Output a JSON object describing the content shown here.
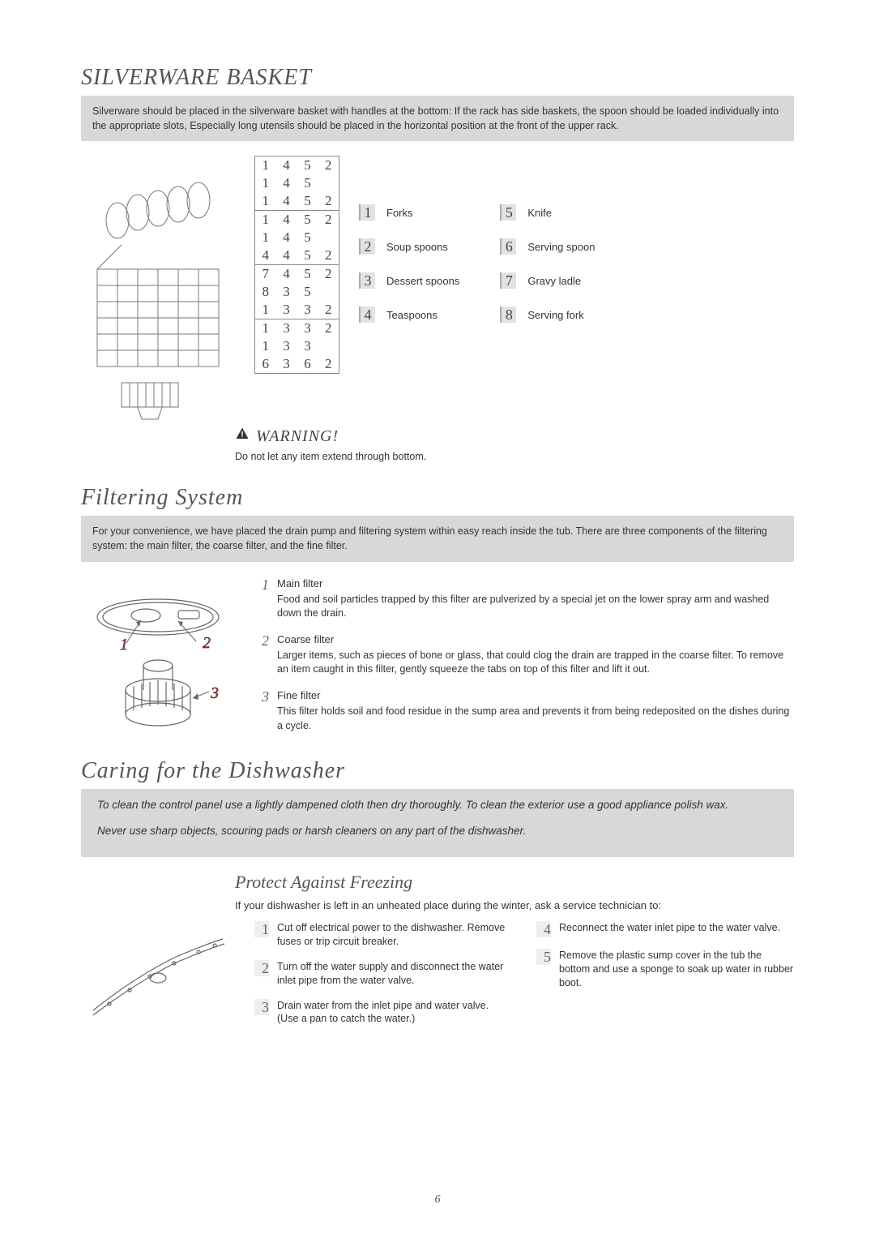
{
  "page_number": "6",
  "colors": {
    "background": "#ffffff",
    "info_box_bg": "#d8d8da",
    "text": "#333333",
    "heading": "#555555",
    "table_border": "#888888",
    "num_box_bg": "#e2e2e2"
  },
  "silverware": {
    "title": "SILVERWARE BASKET",
    "intro": "Silverware should be placed in the silverware basket with handles at the bottom: If the rack has side baskets, the spoon should be loaded individually into the appropriate slots, Especially long utensils should be placed in the horizontal position at the front of the upper rack.",
    "number_grid": {
      "groups": [
        [
          [
            "1",
            "4",
            "5",
            "2"
          ],
          [
            "1",
            "4",
            "5",
            ""
          ],
          [
            "1",
            "4",
            "5",
            "2"
          ]
        ],
        [
          [
            "1",
            "4",
            "5",
            "2"
          ],
          [
            "1",
            "4",
            "5",
            ""
          ],
          [
            "4",
            "4",
            "5",
            "2"
          ]
        ],
        [
          [
            "7",
            "4",
            "5",
            "2"
          ],
          [
            "8",
            "3",
            "5",
            ""
          ],
          [
            "1",
            "3",
            "3",
            "2"
          ]
        ],
        [
          [
            "1",
            "3",
            "3",
            "2"
          ],
          [
            "1",
            "3",
            "3",
            ""
          ],
          [
            "6",
            "3",
            "6",
            "2"
          ]
        ]
      ],
      "cell_fontsize": 17,
      "font_family": "Georgia"
    },
    "legend_left": [
      {
        "n": "1",
        "label": "Forks"
      },
      {
        "n": "2",
        "label": "Soup spoons"
      },
      {
        "n": "3",
        "label": "Dessert spoons"
      },
      {
        "n": "4",
        "label": "Teaspoons"
      }
    ],
    "legend_right": [
      {
        "n": "5",
        "label": "Knife"
      },
      {
        "n": "6",
        "label": "Serving spoon"
      },
      {
        "n": "7",
        "label": "Gravy ladle"
      },
      {
        "n": "8",
        "label": "Serving fork"
      }
    ],
    "warning_title": "WARNING!",
    "warning_text": "Do not let any item extend through bottom."
  },
  "filtering": {
    "title": "Filtering System",
    "intro": "For your convenience, we have placed the drain pump and filtering system within easy reach inside the tub. There are three components of the filtering system: the main filter, the coarse filter, and the fine filter.",
    "items": [
      {
        "n": "1",
        "title": "Main filter",
        "body": "Food and soil particles trapped by this filter are pulverized by a special jet on the lower spray arm and washed down the drain."
      },
      {
        "n": "2",
        "title": "Coarse filter",
        "body": "Larger items, such as pieces of bone or glass, that could clog the drain are trapped in the coarse filter. To remove an item caught in this filter, gently squeeze the tabs on top of this filter and lift it out."
      },
      {
        "n": "3",
        "title": "Fine filter",
        "body": "This filter holds soil and food residue in the sump area and prevents it from being redeposited on the dishes during a cycle."
      }
    ]
  },
  "caring": {
    "title": "Caring for the Dishwasher",
    "para1": "To clean the control panel use a lightly dampened cloth then dry thoroughly.  To clean the exterior use a good appliance polish wax.",
    "para2": "Never use sharp objects, scouring pads or harsh cleaners on any part of the dishwasher."
  },
  "freezing": {
    "subtitle": "Protect Against Freezing",
    "intro": "If your dishwasher is left in an unheated place during the winter, ask a service technician to:",
    "left": [
      {
        "n": "1",
        "body": "Cut off electrical power to the dishwasher. Remove fuses or trip circuit breaker."
      },
      {
        "n": "2",
        "body": "Turn off the water supply and disconnect the water inlet pipe from the water valve."
      },
      {
        "n": "3",
        "body": "Drain water from the inlet pipe and water valve. (Use a pan to catch the water.)"
      }
    ],
    "right": [
      {
        "n": "4",
        "body": "Reconnect the water inlet pipe to the water valve."
      },
      {
        "n": "5",
        "body": "Remove the plastic sump cover in the tub the bottom and use a sponge to soak up water in rubber boot."
      }
    ]
  }
}
